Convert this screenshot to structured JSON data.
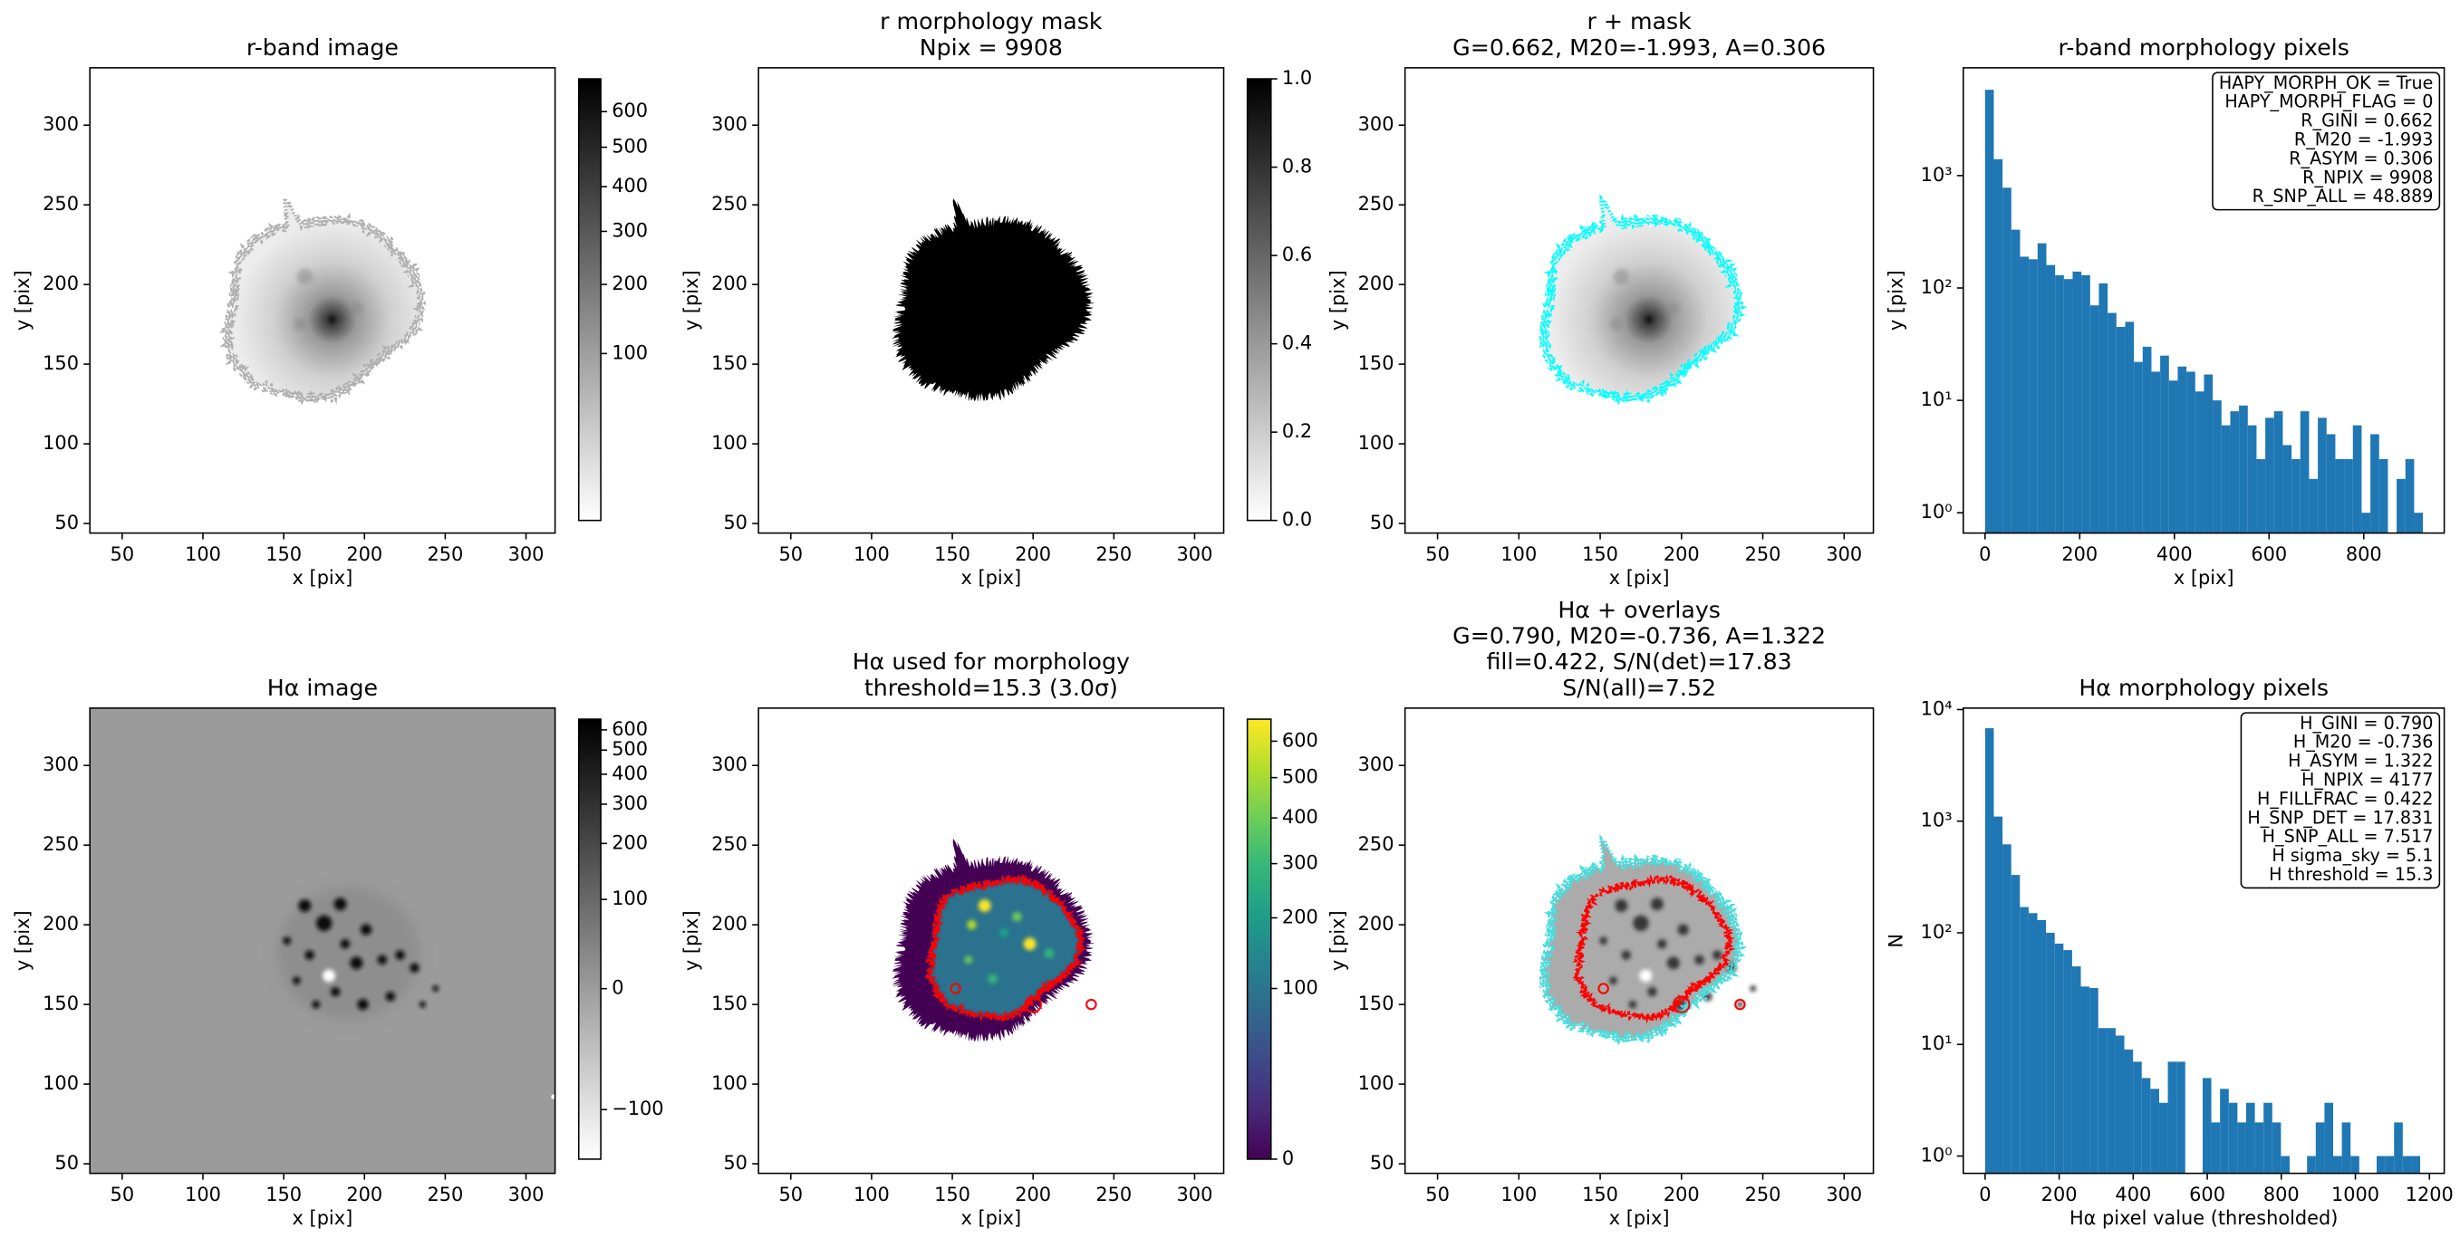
{
  "chart_data": [
    {
      "type": "image",
      "image": "galaxy",
      "overlays": [
        "outline"
      ],
      "outline_color": "#b0b0b0",
      "title": [
        "r-band image"
      ],
      "xlabel": "x [pix]",
      "ylabel": "y [pix]",
      "xlim": [
        30,
        318
      ],
      "ylim": [
        44,
        336
      ],
      "xticks": [
        50,
        100,
        150,
        200,
        250,
        300
      ],
      "yticks": [
        50,
        100,
        150,
        200,
        250,
        300
      ],
      "cmap": "gray_r",
      "colorbar": {
        "lim": [
          0,
          700
        ],
        "scale": "sqrt",
        "ticks": [
          100,
          200,
          300,
          400,
          500,
          600
        ]
      }
    },
    {
      "type": "image",
      "image": "mask",
      "overlays": [],
      "title": [
        "r morphology mask",
        "Npix = 9908"
      ],
      "xlabel": "x [pix]",
      "ylabel": "y [pix]",
      "xlim": [
        30,
        318
      ],
      "ylim": [
        44,
        336
      ],
      "xticks": [
        50,
        100,
        150,
        200,
        250,
        300
      ],
      "yticks": [
        50,
        100,
        150,
        200,
        250,
        300
      ],
      "cmap": "gray_r",
      "colorbar": {
        "lim": [
          0,
          1
        ],
        "scale": "linear",
        "ticks": [
          {
            "value": 0,
            "label": "0.0"
          },
          0.2,
          0.4,
          0.6,
          0.8,
          {
            "value": 1,
            "label": "1.0"
          }
        ]
      }
    },
    {
      "type": "image",
      "image": "galaxy",
      "overlays": [
        "outline"
      ],
      "outline_color": "#00ffff",
      "title": [
        "r + mask",
        "G=0.662, M20=-1.993, A=0.306"
      ],
      "xlabel": "x [pix]",
      "ylabel": "y [pix]",
      "xlim": [
        30,
        318
      ],
      "ylim": [
        44,
        336
      ],
      "xticks": [
        50,
        100,
        150,
        200,
        250,
        300
      ],
      "yticks": [
        50,
        100,
        150,
        200,
        250,
        300
      ],
      "cmap": "gray_r"
    },
    {
      "type": "histogram",
      "title": [
        "r-band morphology pixels"
      ],
      "xlabel": "x [pix]",
      "ylabel": "y [pix]",
      "color": "#1f77b4",
      "bins": [
        0,
        18.5,
        37,
        55.5,
        74,
        92.5,
        111,
        129.5,
        148,
        166.5,
        185,
        203.5,
        222,
        240.5,
        259,
        277.5,
        296,
        314.5,
        333,
        351.5,
        370,
        388.5,
        407,
        425.5,
        444,
        462.5,
        481,
        499.5,
        518,
        536.5,
        555,
        573.5,
        592,
        610.5,
        629,
        647.5,
        666,
        684.5,
        703,
        721.5,
        740,
        758.5,
        777,
        795.5,
        814,
        832.5,
        851,
        869.5,
        888,
        906.5,
        925
      ],
      "values": [
        5800,
        1400,
        780,
        330,
        190,
        180,
        250,
        160,
        130,
        120,
        140,
        130,
        70,
        110,
        60,
        45,
        50,
        22,
        30,
        18,
        25,
        15,
        20,
        18,
        12,
        17,
        10,
        6,
        8,
        9,
        6,
        3,
        7,
        8,
        4,
        3,
        8,
        2,
        7,
        5,
        3,
        3,
        6,
        1,
        5,
        3,
        0,
        2,
        3,
        1
      ],
      "xlim": [
        -46,
        970
      ],
      "ylim": [
        0.66,
        9100
      ],
      "yscale": "log",
      "xticks": [
        0,
        200,
        400,
        600,
        800
      ],
      "yticks": [
        {
          "value": 1,
          "label": "10⁰"
        },
        {
          "value": 10,
          "label": "10¹"
        },
        {
          "value": 100,
          "label": "10²"
        },
        {
          "value": 1000,
          "label": "10³"
        }
      ],
      "annotation": [
        "HAPY_MORPH_OK = True",
        "HAPY_MORPH_FLAG = 0",
        "R_GINI = 0.662",
        "R_M20 = -1.993",
        "R_ASYM = 0.306",
        "R_NPIX = 9908",
        "R_SNP_ALL = 48.889"
      ]
    },
    {
      "type": "image",
      "image": "halpha",
      "overlays": [],
      "title": [
        "Hα image"
      ],
      "xlabel": "x [pix]",
      "ylabel": "y [pix]",
      "xlim": [
        30,
        318
      ],
      "ylim": [
        44,
        336
      ],
      "xticks": [
        50,
        100,
        150,
        200,
        250,
        300
      ],
      "yticks": [
        50,
        100,
        150,
        200,
        250,
        300
      ],
      "cmap": "gray_r",
      "colorbar": {
        "lim": [
          -150,
          660
        ],
        "scale": "asinh",
        "ticks": [
          {
            "value": -100,
            "label": "−100"
          },
          0,
          100,
          200,
          300,
          400,
          500,
          600
        ]
      }
    },
    {
      "type": "image",
      "image": "threshold",
      "overlays": [
        "contour"
      ],
      "contour_color": "#ff0000",
      "title": [
        "Hα used for morphology",
        "threshold=15.3 (3.0σ)"
      ],
      "xlabel": "x [pix]",
      "ylabel": "y [pix]",
      "xlim": [
        30,
        318
      ],
      "ylim": [
        44,
        336
      ],
      "xticks": [
        50,
        100,
        150,
        200,
        250,
        300
      ],
      "yticks": [
        50,
        100,
        150,
        200,
        250,
        300
      ],
      "cmap": "viridis",
      "colorbar": {
        "lim": [
          0,
          665
        ],
        "scale": "sqrt",
        "ticks": [
          0,
          100,
          200,
          300,
          400,
          500,
          600
        ]
      }
    },
    {
      "type": "image",
      "image": "overlay",
      "overlays": [
        "outline",
        "contour"
      ],
      "outline_color": "#40e0e0",
      "contour_color": "#ff0000",
      "title": [
        "Hα + overlays",
        "G=0.790, M20=-0.736, A=1.322",
        "fill=0.422, S/N(det)=17.83",
        "S/N(all)=7.52"
      ],
      "xlabel": "x [pix]",
      "ylabel": "y [pix]",
      "xlim": [
        30,
        318
      ],
      "ylim": [
        44,
        336
      ],
      "xticks": [
        50,
        100,
        150,
        200,
        250,
        300
      ],
      "yticks": [
        50,
        100,
        150,
        200,
        250,
        300
      ],
      "cmap": "gray_r"
    },
    {
      "type": "histogram",
      "title": [
        "Hα morphology pixels"
      ],
      "xlabel": "Hα pixel value (thresholded)",
      "ylabel": "N",
      "color": "#1f77b4",
      "bins": [
        0,
        23.5,
        47,
        70.5,
        94,
        117.5,
        141,
        164.5,
        188,
        211.5,
        235,
        258.5,
        282,
        305.5,
        329,
        352.5,
        376,
        399.5,
        423,
        446.5,
        470,
        493.5,
        517,
        540.5,
        564,
        587.5,
        611,
        634.5,
        658,
        681.5,
        705,
        728.5,
        752,
        775.5,
        799,
        822.5,
        846,
        869.5,
        893,
        916.5,
        940,
        963.5,
        987,
        1010.5,
        1034,
        1057.5,
        1081,
        1104.5,
        1128,
        1151.5,
        1175
      ],
      "values": [
        6800,
        1100,
        620,
        330,
        170,
        150,
        130,
        100,
        80,
        70,
        50,
        33,
        32,
        14,
        14,
        12,
        9,
        7,
        5,
        4,
        3,
        7,
        7,
        0,
        0,
        5,
        2,
        4,
        3,
        2,
        3,
        2,
        3,
        2,
        1,
        0,
        0,
        1,
        2,
        3,
        1,
        2,
        1,
        0,
        0,
        1,
        1,
        2,
        1,
        1
      ],
      "xlim": [
        -59,
        1240
      ],
      "ylim": [
        0.7,
        10300
      ],
      "yscale": "log",
      "xticks": [
        0,
        200,
        400,
        600,
        800,
        1000,
        1200
      ],
      "yticks": [
        {
          "value": 1,
          "label": "10⁰"
        },
        {
          "value": 10,
          "label": "10¹"
        },
        {
          "value": 100,
          "label": "10²"
        },
        {
          "value": 1000,
          "label": "10³"
        },
        {
          "value": 10000,
          "label": "10⁴"
        }
      ],
      "annotation": [
        "H_GINI = 0.790",
        "H_M20 = -0.736",
        "H_ASYM = 1.322",
        "H_NPIX = 4177",
        "H_FILLFRAC = 0.422",
        "H_SNP_DET = 17.831",
        "H_SNP_ALL = 7.517",
        "H sigma_sky = 5.1",
        "H threshold = 15.3"
      ]
    }
  ]
}
